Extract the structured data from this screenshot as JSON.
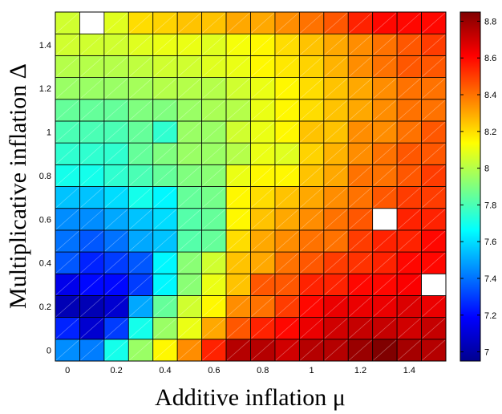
{
  "chart_data": {
    "type": "heatmap",
    "xlabel": "Additive inflation μ",
    "ylabel": "Multiplicative inflation Δ",
    "x": [
      0,
      0.1,
      0.2,
      0.3,
      0.4,
      0.5,
      0.6,
      0.7,
      0.8,
      0.9,
      1.0,
      1.1,
      1.2,
      1.3,
      1.4,
      1.5
    ],
    "y": [
      0,
      0.1,
      0.2,
      0.3,
      0.4,
      0.5,
      0.6,
      0.7,
      0.8,
      0.9,
      1.0,
      1.1,
      1.2,
      1.3,
      1.4,
      1.5
    ],
    "xticks": [
      "0",
      "0.2",
      "0.4",
      "0.6",
      "0.8",
      "1",
      "1.2",
      "1.4"
    ],
    "yticks": [
      "0",
      "0.2",
      "0.4",
      "0.6",
      "0.8",
      "1",
      "1.2",
      "1.4"
    ],
    "zlim": [
      6.95,
      8.85
    ],
    "colorbar_ticks": [
      "7",
      "7.2",
      "7.4",
      "7.6",
      "7.8",
      "8",
      "8.2",
      "8.4",
      "8.6",
      "8.8"
    ],
    "colormap": "jet",
    "missing_color": "#ffffff",
    "values": [
      [
        7.45,
        7.42,
        7.7,
        7.95,
        8.15,
        8.35,
        8.55,
        8.75,
        8.75,
        8.7,
        8.75,
        8.75,
        8.8,
        8.85,
        8.78,
        8.75
      ],
      [
        7.25,
        7.1,
        7.3,
        7.7,
        7.95,
        8.1,
        8.3,
        8.45,
        8.55,
        8.6,
        8.65,
        8.7,
        8.72,
        8.72,
        8.7,
        8.72
      ],
      [
        7.05,
        7.05,
        7.1,
        7.5,
        7.85,
        8.05,
        8.15,
        8.35,
        8.4,
        8.5,
        8.6,
        8.65,
        8.65,
        8.65,
        8.68,
        8.65
      ],
      [
        7.15,
        7.2,
        7.2,
        7.3,
        7.65,
        7.92,
        8.1,
        8.25,
        8.45,
        8.45,
        8.55,
        8.55,
        8.6,
        8.6,
        8.62,
        null
      ],
      [
        7.35,
        7.25,
        7.3,
        7.35,
        7.65,
        7.92,
        8.05,
        8.25,
        8.3,
        8.4,
        8.45,
        8.5,
        8.52,
        8.55,
        8.6,
        8.6
      ],
      [
        7.4,
        7.35,
        7.4,
        7.5,
        7.55,
        7.82,
        7.85,
        8.2,
        8.3,
        8.35,
        8.4,
        8.4,
        8.5,
        8.55,
        8.55,
        8.6
      ],
      [
        7.45,
        7.45,
        7.5,
        7.55,
        7.6,
        7.82,
        7.85,
        8.15,
        8.25,
        8.3,
        8.35,
        8.4,
        8.45,
        null,
        8.55,
        8.55
      ],
      [
        7.55,
        7.55,
        7.6,
        7.7,
        7.65,
        7.85,
        7.88,
        8.15,
        8.2,
        8.25,
        8.3,
        8.35,
        8.4,
        8.45,
        8.5,
        8.5
      ],
      [
        7.7,
        7.7,
        7.75,
        7.8,
        7.85,
        7.9,
        7.92,
        8.1,
        8.15,
        8.15,
        8.25,
        8.3,
        8.4,
        8.4,
        8.45,
        8.5
      ],
      [
        7.75,
        7.75,
        7.75,
        7.85,
        7.9,
        7.95,
        7.95,
        8.0,
        8.1,
        8.08,
        8.22,
        8.28,
        8.35,
        8.4,
        8.45,
        8.45
      ],
      [
        7.8,
        7.8,
        7.8,
        7.85,
        7.75,
        7.95,
        7.95,
        8.05,
        8.1,
        8.15,
        8.25,
        8.25,
        8.35,
        8.35,
        8.4,
        8.45
      ],
      [
        7.85,
        7.85,
        7.85,
        7.9,
        7.9,
        7.95,
        7.98,
        8.0,
        8.1,
        8.15,
        8.2,
        8.25,
        8.3,
        8.35,
        8.4,
        8.4
      ],
      [
        7.95,
        7.95,
        7.95,
        7.97,
        8.0,
        8.0,
        8.0,
        8.05,
        8.1,
        8.15,
        8.2,
        8.25,
        8.3,
        8.35,
        8.4,
        8.4
      ],
      [
        8.0,
        8.0,
        8.0,
        8.02,
        8.05,
        8.05,
        8.08,
        8.1,
        8.15,
        8.18,
        8.22,
        8.28,
        8.35,
        8.4,
        8.45,
        8.45
      ],
      [
        8.05,
        8.05,
        8.05,
        8.08,
        8.1,
        8.1,
        8.08,
        8.12,
        8.15,
        8.2,
        8.25,
        8.3,
        8.35,
        8.4,
        8.45,
        8.5
      ],
      [
        8.05,
        null,
        8.08,
        8.2,
        8.22,
        8.25,
        8.25,
        8.3,
        8.3,
        8.35,
        8.4,
        8.45,
        8.55,
        8.6,
        8.6,
        8.6
      ]
    ]
  }
}
